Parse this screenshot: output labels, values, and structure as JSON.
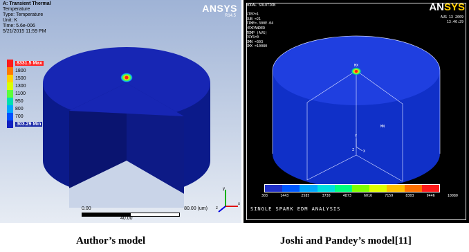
{
  "left": {
    "header": [
      "A: Transient Thermal",
      "Temperature",
      "Type: Temperature",
      "Unit: K",
      "Time: 5.6e-006",
      "5/21/2015 11:59 PM"
    ],
    "logo": "ANSYS",
    "version": "R14.5",
    "legend": [
      {
        "label": "8331.5 Max",
        "color": "#ff1a1a",
        "kind": "max"
      },
      {
        "label": "1800",
        "color": "#ff7a00",
        "kind": "n"
      },
      {
        "label": "1500",
        "color": "#ffd200",
        "kind": "n"
      },
      {
        "label": "1300",
        "color": "#d8ff00",
        "kind": "n"
      },
      {
        "label": "1100",
        "color": "#5cff3a",
        "kind": "n"
      },
      {
        "label": "950",
        "color": "#00e0b0",
        "kind": "n"
      },
      {
        "label": "800",
        "color": "#00a8ff",
        "kind": "n"
      },
      {
        "label": "700",
        "color": "#0050ff",
        "kind": "n"
      },
      {
        "label": "303.29 Min",
        "color": "#1020c0",
        "kind": "min"
      }
    ],
    "scale": {
      "start": "0.00",
      "end": "80.00 (um)",
      "mid": "40.00"
    },
    "triad": {
      "x": "x",
      "y": "y",
      "z": "z"
    }
  },
  "right": {
    "info": [
      "NODAL SOLUTION",
      "",
      "STEP=1",
      "SUB =21",
      "TIME=.300E-04",
      "/EXPANDED",
      "TEMP    (AVG)",
      "RSYS=0",
      "SMN =303",
      "SMX =10080"
    ],
    "logo_main": "AN",
    "logo_accent": "SYS",
    "date": [
      "AUG 13 2009",
      "13:46:29"
    ],
    "mx_label": "MX",
    "mn_label": "MN",
    "triad": {
      "y": "Y",
      "z": "Z",
      "x": "X"
    },
    "colorbar": [
      "#2030c8",
      "#0058ff",
      "#00a8ff",
      "#00e0e0",
      "#00ff80",
      "#80ff00",
      "#e0ff00",
      "#ffc000",
      "#ff7000",
      "#ff1a1a"
    ],
    "ticks": [
      "303",
      "1443",
      "2585",
      "3730",
      "4873",
      "6016",
      "7159",
      "8303",
      "9446",
      "10080"
    ],
    "footer": "SINGLE SPARK EDM ANALYSIS"
  },
  "captions": {
    "left": "Author’s model",
    "right": "Joshi and Pandey’s model[11]"
  }
}
